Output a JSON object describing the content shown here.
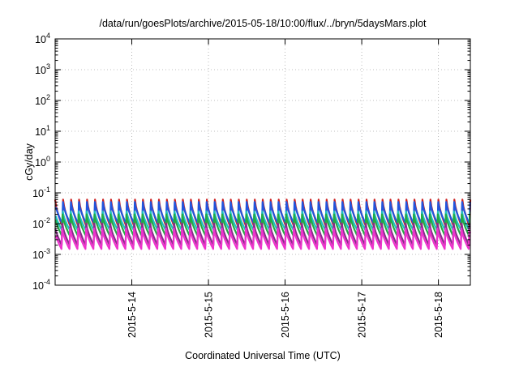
{
  "chart_data": {
    "type": "line",
    "title": "/data/run/goesPlots/archive/2015-05-18/10:00/flux/../bryn/5daysMars.plot",
    "xlabel": "Coordinated Universal Time (UTC)",
    "ylabel": "cGy/day",
    "y_scale": "log",
    "ylim": [
      0.0001,
      10000
    ],
    "y_ticks": [
      {
        "value": 0.0001,
        "base": "10",
        "exp": "-4"
      },
      {
        "value": 0.001,
        "base": "10",
        "exp": "-3"
      },
      {
        "value": 0.01,
        "base": "10",
        "exp": "-2"
      },
      {
        "value": 0.1,
        "base": "10",
        "exp": "-1"
      },
      {
        "value": 1,
        "base": "10",
        "exp": "0"
      },
      {
        "value": 10,
        "base": "10",
        "exp": "1"
      },
      {
        "value": 100,
        "base": "10",
        "exp": "2"
      },
      {
        "value": 1000,
        "base": "10",
        "exp": "3"
      },
      {
        "value": 10000,
        "base": "10",
        "exp": "4"
      }
    ],
    "xlim": [
      "2015-05-13T00:00",
      "2015-05-18T10:00"
    ],
    "x_ticks": [
      {
        "value": "2015-05-14T00:00",
        "label": "2015-5-14"
      },
      {
        "value": "2015-05-15T00:00",
        "label": "2015-5-15"
      },
      {
        "value": "2015-05-16T00:00",
        "label": "2015-5-16"
      },
      {
        "value": "2015-05-17T00:00",
        "label": "2015-5-17"
      },
      {
        "value": "2015-05-18T00:00",
        "label": "2015-5-18"
      }
    ],
    "grid": true,
    "sawtooth_period_hours": 2.5,
    "series": [
      {
        "color": "#cc2222",
        "peak": 0.06,
        "trough": 0.008
      },
      {
        "color": "#2255dd",
        "peak": 0.05,
        "trough": 0.01
      },
      {
        "color": "#20c0c0",
        "peak": 0.025,
        "trough": 0.006
      },
      {
        "color": "#22aa44",
        "peak": 0.02,
        "trough": 0.004
      },
      {
        "color": "#8a2a8a",
        "peak": 0.01,
        "trough": 0.002
      },
      {
        "color": "#ee33cc",
        "peak": 0.007,
        "trough": 0.0015
      }
    ]
  }
}
